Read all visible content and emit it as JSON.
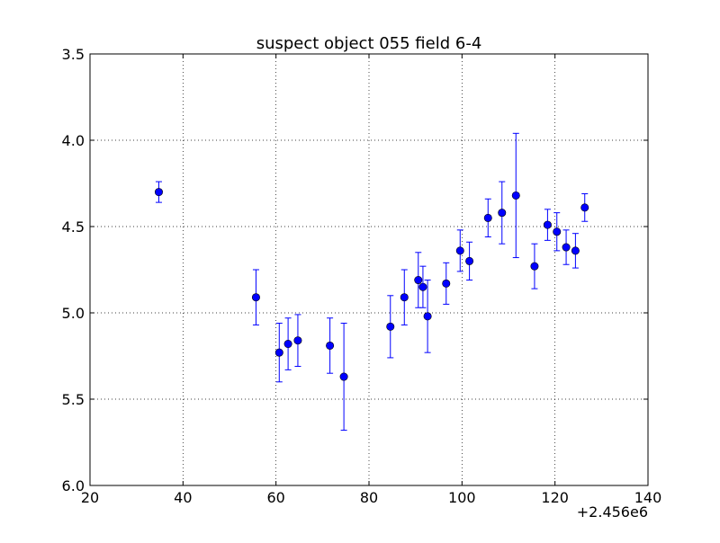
{
  "chart_data": {
    "type": "scatter",
    "title": "suspect object 055 field 6-4",
    "xlabel": "",
    "ylabel": "",
    "x_offset_label": "+2.456e6",
    "xlim": [
      20,
      140
    ],
    "ylim": [
      3.5,
      6.0
    ],
    "y_inverted": true,
    "grid": true,
    "x_ticks": [
      20,
      40,
      60,
      80,
      100,
      120,
      140
    ],
    "x_tick_labels": [
      "20",
      "40",
      "60",
      "80",
      "100",
      "120",
      "140"
    ],
    "y_ticks": [
      3.5,
      4.0,
      4.5,
      5.0,
      5.5,
      6.0
    ],
    "y_tick_labels": [
      "3.5",
      "4.0",
      "4.5",
      "5.0",
      "5.5",
      "6.0"
    ],
    "marker_color": "#0000ff",
    "errorbar_color": "#0000ff",
    "points": [
      {
        "x": 34.8,
        "y": 4.3,
        "err": 0.06
      },
      {
        "x": 55.7,
        "y": 4.91,
        "err": 0.16
      },
      {
        "x": 60.7,
        "y": 5.23,
        "err": 0.17
      },
      {
        "x": 62.6,
        "y": 5.18,
        "err": 0.15
      },
      {
        "x": 64.7,
        "y": 5.16,
        "err": 0.15
      },
      {
        "x": 71.6,
        "y": 5.19,
        "err": 0.16
      },
      {
        "x": 74.6,
        "y": 5.37,
        "err": 0.31
      },
      {
        "x": 84.6,
        "y": 5.08,
        "err": 0.18
      },
      {
        "x": 87.6,
        "y": 4.91,
        "err": 0.16
      },
      {
        "x": 90.6,
        "y": 4.81,
        "err": 0.16
      },
      {
        "x": 91.6,
        "y": 4.85,
        "err": 0.12
      },
      {
        "x": 92.6,
        "y": 5.02,
        "err": 0.21
      },
      {
        "x": 96.6,
        "y": 4.83,
        "err": 0.12
      },
      {
        "x": 99.6,
        "y": 4.64,
        "err": 0.12
      },
      {
        "x": 101.6,
        "y": 4.7,
        "err": 0.11
      },
      {
        "x": 105.6,
        "y": 4.45,
        "err": 0.11
      },
      {
        "x": 108.6,
        "y": 4.42,
        "err": 0.18
      },
      {
        "x": 111.6,
        "y": 4.32,
        "err": 0.36
      },
      {
        "x": 115.6,
        "y": 4.73,
        "err": 0.13
      },
      {
        "x": 118.4,
        "y": 4.49,
        "err": 0.09
      },
      {
        "x": 120.4,
        "y": 4.53,
        "err": 0.11
      },
      {
        "x": 122.4,
        "y": 4.62,
        "err": 0.1
      },
      {
        "x": 124.4,
        "y": 4.64,
        "err": 0.1
      },
      {
        "x": 126.4,
        "y": 4.39,
        "err": 0.08
      }
    ]
  }
}
